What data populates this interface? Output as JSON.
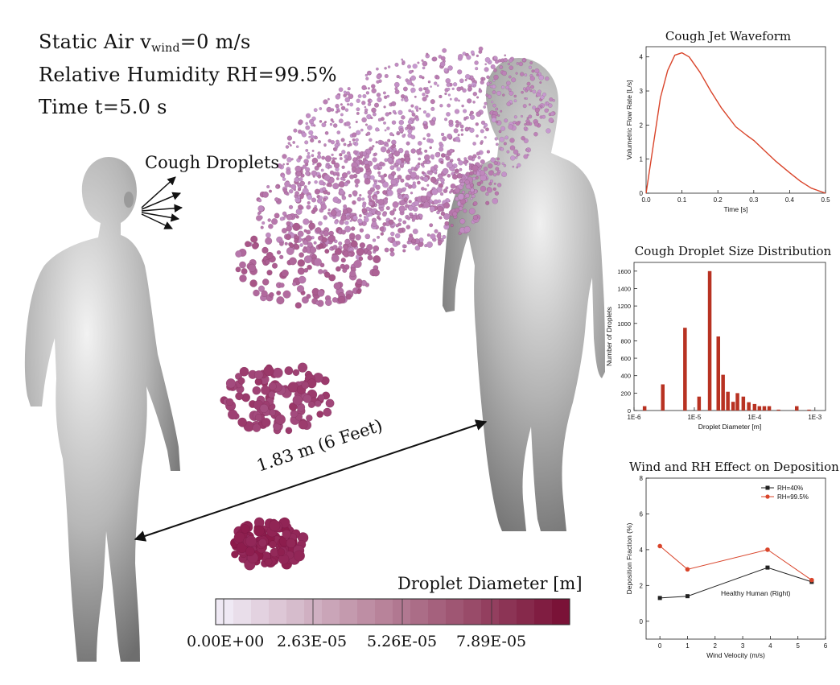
{
  "header": {
    "line1_prefix": "Static Air v",
    "line1_sub": "wind",
    "line1_suffix": "=0 m/s",
    "line2": "Relative Humidity RH=99.5%",
    "line3": "Time t=5.0 s"
  },
  "annotations": {
    "cough_droplets": "Cough Droplets",
    "distance": "1.83 m (6 Feet)"
  },
  "colorbar": {
    "title": "Droplet Diameter [m]",
    "ticks": [
      "0.00E+00",
      "2.63E-05",
      "5.26E-05",
      "7.89E-05"
    ],
    "min_color": "#efe9f4",
    "max_color": "#7a1237",
    "steps": 20
  },
  "colors": {
    "body": "#a9a9a9",
    "droplet_light": "#c79ad0",
    "droplet_dark": "#8c1a4a",
    "line_red": "#d9442a",
    "bar_red": "#b83222"
  },
  "chart_data": [
    {
      "type": "line",
      "title": "Cough Jet Waveform",
      "xlabel": "Time [s]",
      "ylabel": "Volumetric Flow Rate [L/s]",
      "xlim": [
        0,
        0.5
      ],
      "ylim": [
        0,
        4.3
      ],
      "xticks": [
        "0.0",
        "0.1",
        "0.2",
        "0.3",
        "0.4",
        "0.5"
      ],
      "yticks": [
        "0",
        "1",
        "2",
        "3",
        "4"
      ],
      "series": [
        {
          "color": "#d9442a",
          "x": [
            0,
            0.02,
            0.04,
            0.06,
            0.08,
            0.1,
            0.12,
            0.15,
            0.18,
            0.21,
            0.25,
            0.28,
            0.3,
            0.33,
            0.36,
            0.4,
            0.43,
            0.46,
            0.5
          ],
          "y": [
            0,
            1.4,
            2.8,
            3.6,
            4.05,
            4.12,
            4.0,
            3.55,
            3.0,
            2.5,
            1.95,
            1.7,
            1.55,
            1.25,
            0.95,
            0.6,
            0.35,
            0.15,
            0
          ]
        }
      ]
    },
    {
      "type": "bar",
      "title": "Cough Droplet Size Distribution",
      "xlabel": "Droplet Diameter [m]",
      "ylabel": "Number of Droplets",
      "xscale": "log",
      "xlim": [
        1e-06,
        0.0015
      ],
      "ylim": [
        0,
        1700
      ],
      "xticks": [
        "1E-6",
        "1E-5",
        "1E-4",
        "1E-3"
      ],
      "yticks": [
        "0",
        "200",
        "400",
        "600",
        "800",
        "1000",
        "1200",
        "1400",
        "1600"
      ],
      "x": [
        1.5e-06,
        3e-06,
        7e-06,
        1.2e-05,
        1.8e-05,
        2.5e-05,
        3e-05,
        3.6e-05,
        4.4e-05,
        5.2e-05,
        6.5e-05,
        8e-05,
        0.0001,
        0.00012,
        0.000145,
        0.000175,
        0.00025,
        0.0005,
        0.0008
      ],
      "values": [
        50,
        300,
        950,
        160,
        1600,
        850,
        410,
        215,
        100,
        200,
        160,
        95,
        75,
        50,
        50,
        50,
        10,
        50,
        10
      ]
    },
    {
      "type": "line",
      "title": "Wind and RH Effect on Deposition",
      "xlabel": "Wind Velocity (m/s)",
      "ylabel": "Deposition Fraction (%)",
      "xlim": [
        -0.5,
        6
      ],
      "ylim": [
        -1,
        8
      ],
      "xticks": [
        "0",
        "1",
        "2",
        "3",
        "4",
        "5",
        "6"
      ],
      "yticks": [
        "0",
        "2",
        "4",
        "6",
        "8"
      ],
      "legend": "top-right",
      "annotation": "Healthy Human (Right)",
      "series": [
        {
          "name": "RH=40%",
          "color": "#222222",
          "marker": "square",
          "x": [
            0,
            1,
            3.9,
            5.5
          ],
          "y": [
            1.3,
            1.4,
            3.0,
            2.2
          ]
        },
        {
          "name": "RH=99.5%",
          "color": "#d9442a",
          "marker": "circle",
          "x": [
            0,
            1,
            3.9,
            5.5
          ],
          "y": [
            4.2,
            2.9,
            4.0,
            2.3
          ]
        }
      ]
    }
  ]
}
